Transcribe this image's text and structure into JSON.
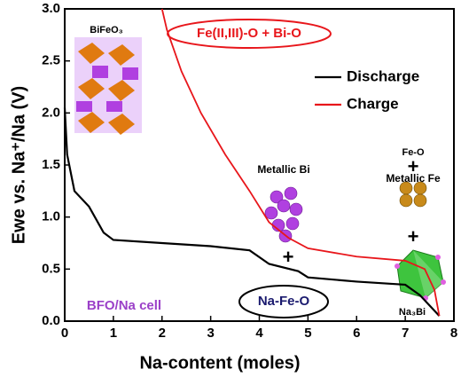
{
  "chart_data": {
    "type": "line",
    "xlabel": "Na-content (moles)",
    "ylabel": "Ewe vs. Na⁺/Na (V)",
    "xlim": [
      0,
      8
    ],
    "ylim": [
      0,
      3.0
    ],
    "xticks": [
      0,
      1,
      2,
      3,
      4,
      5,
      6,
      7,
      8
    ],
    "yticks": [
      {
        "value": 0,
        "label": "0.0"
      },
      0.5,
      {
        "value": 1,
        "label": "1.0"
      },
      1.5,
      {
        "value": 2,
        "label": "2.0"
      },
      2.5,
      {
        "value": 3,
        "label": "3.0"
      }
    ],
    "legend": "upper right",
    "series": [
      {
        "name": "Discharge",
        "color": "#000000",
        "x": [
          0,
          0.05,
          0.2,
          0.5,
          0.8,
          1,
          2,
          3,
          3.8,
          4.2,
          4.8,
          5,
          6,
          7,
          7.3,
          7.5,
          7.7
        ],
        "values": [
          2.05,
          1.6,
          1.25,
          1.1,
          0.85,
          0.78,
          0.75,
          0.72,
          0.68,
          0.55,
          0.48,
          0.42,
          0.38,
          0.35,
          0.25,
          0.15,
          0.05
        ]
      },
      {
        "name": "Charge",
        "color": "#e8161b",
        "x": [
          2.0,
          2.1,
          2.4,
          2.8,
          3.3,
          3.8,
          4.2,
          4.6,
          5,
          6,
          7,
          7.4,
          7.6,
          7.7
        ],
        "values": [
          3.0,
          2.8,
          2.4,
          2.0,
          1.6,
          1.25,
          0.95,
          0.8,
          0.7,
          0.62,
          0.58,
          0.5,
          0.3,
          0.05
        ]
      }
    ],
    "annotations": [
      {
        "text": "BiFeO₃",
        "color": "#000000"
      },
      {
        "text": "Fe(II,III)-O + Bi-O",
        "color": "#e8161b"
      },
      {
        "text": "Metallic Bi",
        "color": "#000000"
      },
      {
        "text": "+",
        "color": "#000000"
      },
      {
        "text": "Fe-O",
        "color": "#000000"
      },
      {
        "text": "+",
        "color": "#000000"
      },
      {
        "text": "Metallic Fe",
        "color": "#000000"
      },
      {
        "text": "+",
        "color": "#000000"
      },
      {
        "text": "Na-Fe-O",
        "color": "#1a1a6e"
      },
      {
        "text": "BFO/Na cell",
        "color": "#9b40c8"
      },
      {
        "text": "Na₃Bi",
        "color": "#000000"
      }
    ]
  }
}
